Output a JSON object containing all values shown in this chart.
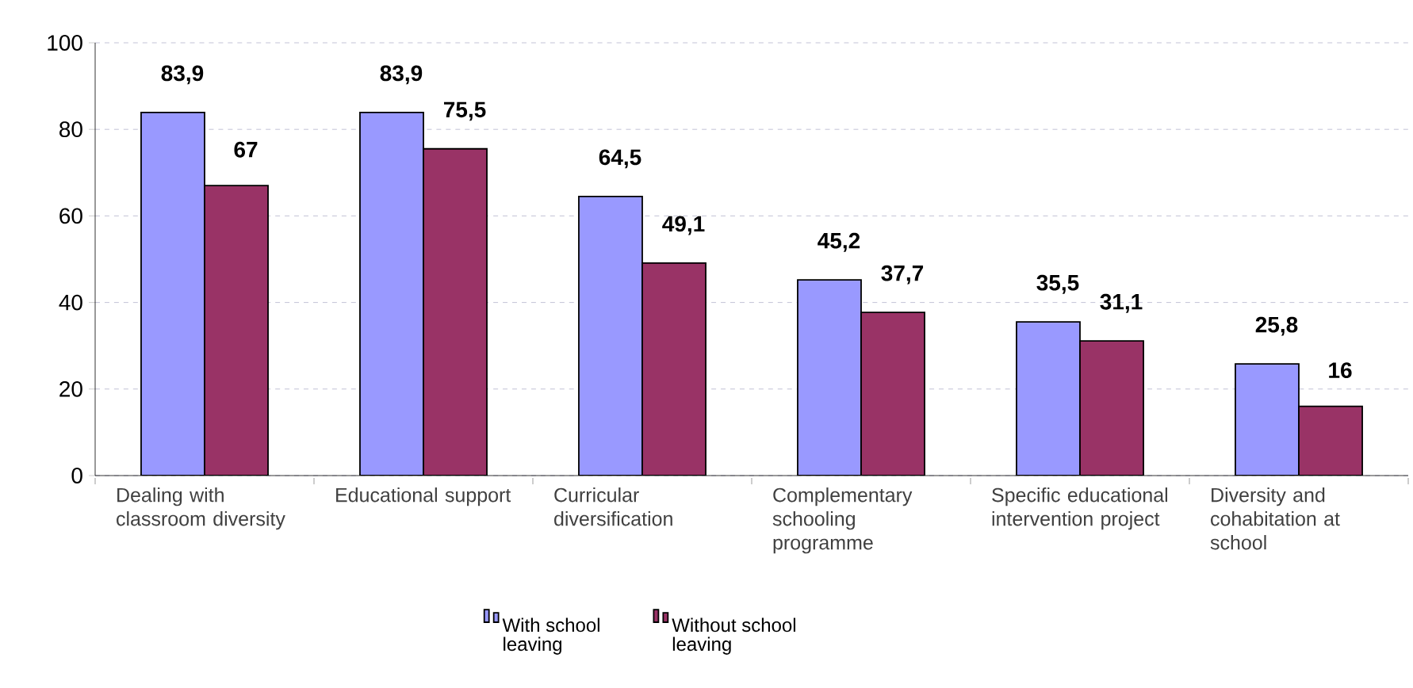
{
  "chart_data": {
    "type": "bar",
    "categories": [
      "Dealing with classroom diversity",
      "Educational support",
      "Curricular diversification",
      "Complementary schooling programme",
      "Specific educational intervention project",
      "Diversity and cohabitation at school"
    ],
    "series": [
      {
        "name": "With school leaving",
        "color": "#9999ff",
        "values": [
          83.9,
          83.9,
          64.5,
          45.2,
          35.5,
          25.8
        ],
        "value_labels": [
          "83,9",
          "83,9",
          "64,5",
          "45,2",
          "35,5",
          "25,8"
        ]
      },
      {
        "name": "Without school leaving",
        "color": "#993366",
        "values": [
          67,
          75.5,
          49.1,
          37.7,
          31.1,
          16
        ],
        "value_labels": [
          "67",
          "75,5",
          "49,1",
          "37,7",
          "31,1",
          "16"
        ]
      }
    ],
    "ylim": [
      0,
      100
    ],
    "yticks": [
      0,
      20,
      40,
      60,
      80,
      100
    ],
    "grid": "y",
    "legend": "bottom"
  }
}
